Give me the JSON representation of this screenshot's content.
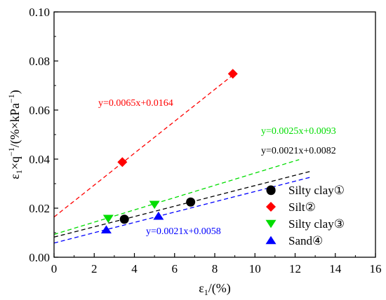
{
  "chart_data": {
    "type": "scatter",
    "xlabel": "ε1/(%)",
    "ylabel": "ε1×q−1/(%×kPa−1)",
    "xlim": [
      0,
      16
    ],
    "ylim": [
      0,
      0.1
    ],
    "x_ticks": [
      0,
      2,
      4,
      6,
      8,
      10,
      12,
      14,
      16
    ],
    "y_ticks": [
      0.0,
      0.02,
      0.04,
      0.06,
      0.08,
      0.1
    ],
    "y_tick_labels": [
      "0.00",
      "0.02",
      "0.04",
      "0.06",
      "0.08",
      "0.10"
    ],
    "grid": false,
    "legend_position": "right",
    "series": [
      {
        "name": "Silty clay①",
        "marker": "circle",
        "color": "#000000",
        "points": [
          [
            3.5,
            0.0155
          ],
          [
            6.8,
            0.0225
          ],
          [
            10.8,
            0.0272
          ]
        ],
        "fit": {
          "slope": 0.0021,
          "intercept": 0.0082,
          "x_range": [
            0,
            12.8
          ],
          "label": "y=0.0021x+0.0082"
        }
      },
      {
        "name": "Silt②",
        "marker": "diamond",
        "color": "#ff0000",
        "points": [
          [
            3.4,
            0.0388
          ],
          [
            8.9,
            0.0748
          ]
        ],
        "fit": {
          "slope": 0.0065,
          "intercept": 0.0164,
          "x_range": [
            0,
            8.9
          ],
          "label": "y=0.0065x+0.0164"
        }
      },
      {
        "name": "Silty clay③",
        "marker": "triangle-down",
        "color": "#00dd00",
        "points": [
          [
            2.7,
            0.0158
          ],
          [
            5.0,
            0.0215
          ]
        ],
        "fit": {
          "slope": 0.0025,
          "intercept": 0.0093,
          "x_range": [
            0,
            12.2
          ],
          "label": "y=0.0025x+0.0093"
        }
      },
      {
        "name": "Sand④",
        "marker": "triangle-up",
        "color": "#0000ff",
        "points": [
          [
            2.6,
            0.0112
          ],
          [
            5.2,
            0.0168
          ]
        ],
        "fit": {
          "slope": 0.0021,
          "intercept": 0.0058,
          "x_range": [
            0,
            12.8
          ],
          "label": "y=0.0021x+0.0058"
        }
      }
    ]
  }
}
